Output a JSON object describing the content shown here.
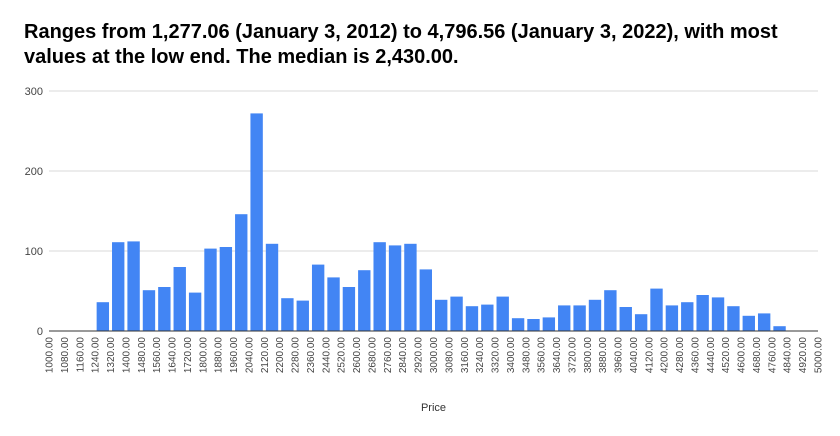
{
  "chart_data": {
    "type": "bar",
    "title": "Ranges from 1,277.06 (January 3, 2012) to 4,796.56 (January 3, 2022), with most values at the low end. The median is 2,430.00.",
    "xlabel": "Price",
    "ylabel": "",
    "ylim": [
      0,
      300
    ],
    "yticks": [
      "0",
      "100",
      "200",
      "300"
    ],
    "xlim": [
      1000,
      5000
    ],
    "bin_width": 80,
    "grid": true,
    "legend": "none",
    "bar_color": "#4285f4",
    "xticks": [
      "1000.00",
      "1080.00",
      "1160.00",
      "1240.00",
      "1320.00",
      "1400.00",
      "1480.00",
      "1560.00",
      "1640.00",
      "1720.00",
      "1800.00",
      "1880.00",
      "1960.00",
      "2040.00",
      "2120.00",
      "2200.00",
      "2280.00",
      "2360.00",
      "2440.00",
      "2520.00",
      "2600.00",
      "2680.00",
      "2760.00",
      "2840.00",
      "2920.00",
      "3000.00",
      "3080.00",
      "3160.00",
      "3240.00",
      "3320.00",
      "3400.00",
      "3480.00",
      "3560.00",
      "3640.00",
      "3720.00",
      "3800.00",
      "3880.00",
      "3960.00",
      "4040.00",
      "4120.00",
      "4200.00",
      "4280.00",
      "4360.00",
      "4440.00",
      "4520.00",
      "4600.00",
      "4680.00",
      "4760.00",
      "4840.00",
      "4920.00",
      "5000.00"
    ],
    "values": [
      0,
      0,
      0,
      36,
      111,
      112,
      51,
      55,
      80,
      48,
      103,
      105,
      146,
      272,
      109,
      41,
      38,
      83,
      67,
      55,
      76,
      111,
      107,
      109,
      77,
      39,
      43,
      31,
      33,
      43,
      16,
      15,
      17,
      32,
      32,
      39,
      51,
      30,
      21,
      53,
      32,
      36,
      45,
      42,
      31,
      19,
      22,
      6,
      0,
      0
    ]
  }
}
